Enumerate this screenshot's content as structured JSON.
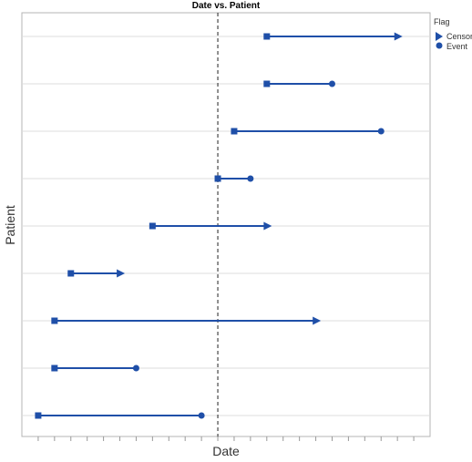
{
  "chart_data": {
    "type": "timeline",
    "title": "Date vs. Patient",
    "xlabel": "Date",
    "ylabel": "Patient",
    "xlim": [
      -12,
      13
    ],
    "x_tick_step": 1,
    "reference_line_x": 0,
    "grid": "horizontal",
    "legend": {
      "title": "Flag",
      "position": "top-right",
      "entries": [
        {
          "label": "Censor",
          "marker": "triangle-right"
        },
        {
          "label": "Event",
          "marker": "circle"
        }
      ]
    },
    "series_color": "#1f4fa8",
    "patients": [
      {
        "row": 1,
        "start": 3,
        "end": 11.2,
        "flag": "Censor"
      },
      {
        "row": 2,
        "start": 3,
        "end": 7,
        "flag": "Event"
      },
      {
        "row": 3,
        "start": 1,
        "end": 10,
        "flag": "Event"
      },
      {
        "row": 4,
        "start": 0,
        "end": 2,
        "flag": "Event"
      },
      {
        "row": 5,
        "start": -4,
        "end": 3.2,
        "flag": "Censor"
      },
      {
        "row": 6,
        "start": -9,
        "end": -5.8,
        "flag": "Censor"
      },
      {
        "row": 7,
        "start": -10,
        "end": 6.2,
        "flag": "Censor"
      },
      {
        "row": 8,
        "start": -10,
        "end": -5,
        "flag": "Event"
      },
      {
        "row": 9,
        "start": -11,
        "end": -1,
        "flag": "Event"
      }
    ]
  }
}
